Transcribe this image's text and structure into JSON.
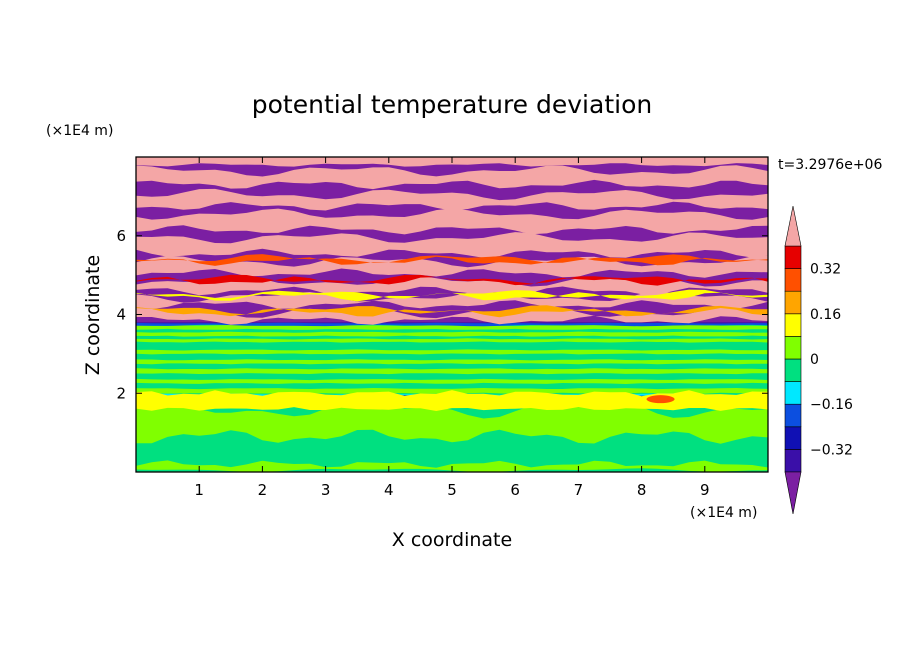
{
  "chart_data": {
    "type": "heatmap",
    "title": "potential temperature deviation",
    "xlabel": "X coordinate",
    "ylabel": "Z coordinate",
    "x_unit": "(×1E4 m)",
    "y_unit": "(×1E4 m)",
    "time_label": "t=3.2976e+06",
    "xlim": [
      0,
      10
    ],
    "ylim": [
      0,
      8
    ],
    "x_ticks": [
      "1",
      "2",
      "3",
      "4",
      "5",
      "6",
      "7",
      "8",
      "9"
    ],
    "y_ticks": [
      "2",
      "4",
      "6"
    ],
    "colorbar": {
      "levels": [
        -0.4,
        -0.32,
        -0.24,
        -0.16,
        -0.08,
        0,
        0.08,
        0.16,
        0.24,
        0.32,
        0.4
      ],
      "labeled_levels": [
        "0.32",
        "0.16",
        "0",
        "−0.16",
        "−0.32"
      ],
      "colors": [
        "#7b1fa2",
        "#3a0fa8",
        "#1010b4",
        "#0c4fe0",
        "#00e8ff",
        "#00e080",
        "#80ff00",
        "#ffff00",
        "#ffa500",
        "#ff5000",
        "#e60000",
        "#f4a6a6"
      ],
      "extend": "both"
    },
    "bands": [
      {
        "z_from": 0,
        "z_to": 1.85,
        "value": "-0.04 to 0.08"
      },
      {
        "z_from": 1.85,
        "z_to": 3.8,
        "value": "-0.04 to 0.04"
      },
      {
        "z_from": 3.8,
        "z_to": 8,
        "value": "alternating -0.4 and 0.4"
      }
    ]
  }
}
